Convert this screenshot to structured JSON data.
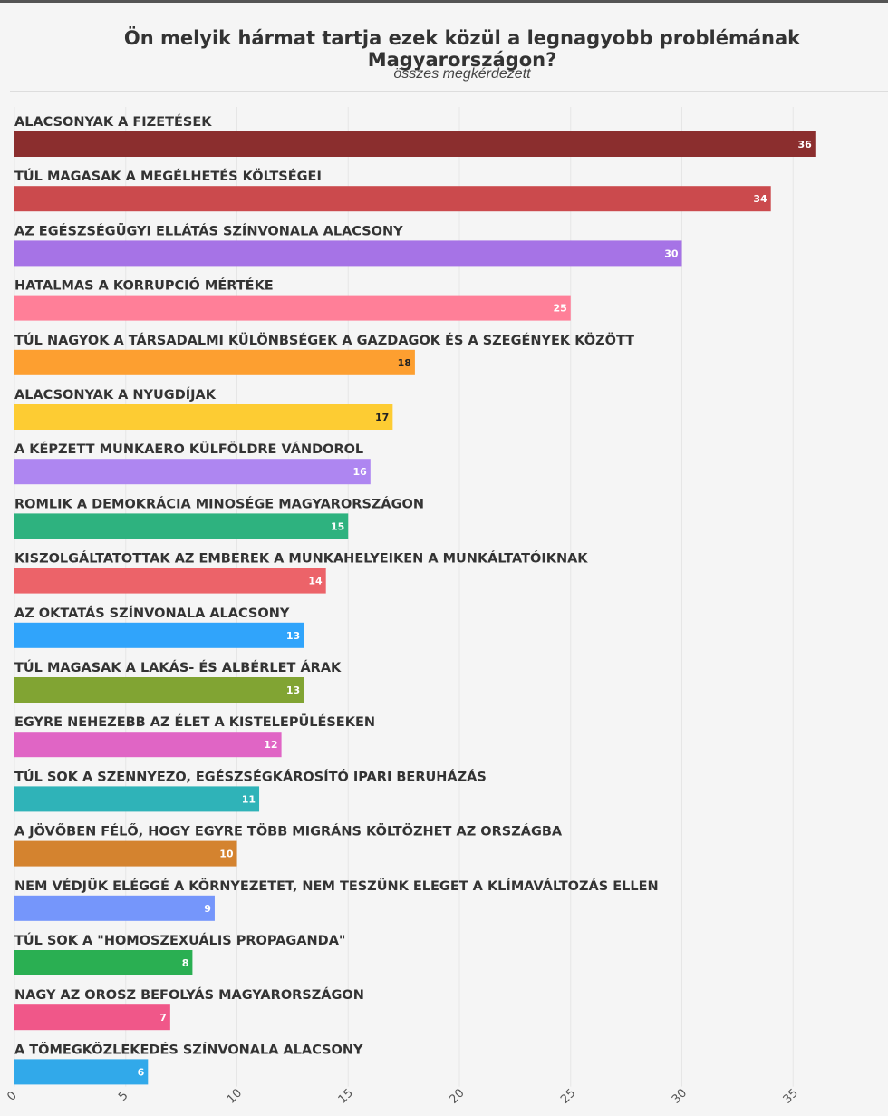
{
  "header": {
    "title": "Ön melyik hármat tartja ezek közül a legnagyobb problémának Magyarországon?",
    "subtitle": "összes megkérdezett"
  },
  "chart_data": {
    "type": "bar",
    "orientation": "horizontal",
    "title": "Ön melyik hármat tartja ezek közül a legnagyobb problémának Magyarországon?",
    "subtitle": "összes megkérdezett",
    "xlim": [
      0,
      39
    ],
    "xticks": [
      0,
      5,
      10,
      15,
      20,
      25,
      30,
      35
    ],
    "grid": "vertical",
    "categories": [
      "ALACSONYAK A FIZETÉSEK",
      "TÚL MAGASAK A MEGÉLHETÉS KÖLTSÉGEI",
      "AZ EGÉSZSÉGÜGYI ELLÁTÁS SZÍNVONALA ALACSONY",
      "HATALMAS A KORRUPCIÓ MÉRTÉKE",
      "TÚL NAGYOK A TÁRSADALMI KÜLÖNBSÉGEK A GAZDAGOK ÉS A SZEGÉNYEK KÖZÖTT",
      "ALACSONYAK A NYUGDÍJAK",
      "A KÉPZETT MUNKAERO KÜLFÖLDRE VÁNDOROL",
      "ROMLIK A DEMOKRÁCIA MINOSÉGE MAGYARORSZÁGON",
      "KISZOLGÁLTATOTTAK AZ EMBEREK A MUNKAHELYEIKEN A MUNKÁLTATÓIKNAK",
      "AZ OKTATÁS SZÍNVONALA ALACSONY",
      "TÚL MAGASAK A LAKÁS- ÉS ALBÉRLET ÁRAK",
      "EGYRE NEHEZEBB AZ ÉLET A KISTELEPÜLÉSEKEN",
      "TÚL SOK A SZENNYEZO, EGÉSZSÉGKÁROSÍTÓ IPARI BERUHÁZÁS",
      "A JÖVŐBEN FÉLŐ, HOGY EGYRE TÖBB MIGRÁNS KÖLTÖZHET AZ ORSZÁGBA",
      "NEM VÉDJÜK ELÉGGÉ A KÖRNYEZETET, NEM TESZÜNK ELEGET A KLÍMAVÁLTOZÁS ELLEN",
      "TÚL SOK A \"HOMOSZEXUÁLIS PROPAGANDA\"",
      "NAGY AZ OROSZ BEFOLYÁS MAGYARORSZÁGON",
      "A TÖMEGKÖZLEKEDÉS SZÍNVONALA ALACSONY"
    ],
    "values": [
      36,
      34,
      30,
      25,
      18,
      17,
      16,
      15,
      14,
      13,
      13,
      12,
      11,
      10,
      9,
      8,
      7,
      6
    ],
    "colors": [
      "#8b2e2e",
      "#cb4a4d",
      "#a673e6",
      "#ff7f98",
      "#fd9f30",
      "#fdcc33",
      "#ae86f1",
      "#2eb27f",
      "#ec6369",
      "#30a4fb",
      "#81a433",
      "#e065c5",
      "#2fb3b8",
      "#d4832f",
      "#7596fb",
      "#2aaf52",
      "#f05789",
      "#31a9ea"
    ],
    "label_colors": [
      "#ffffff",
      "#ffffff",
      "#ffffff",
      "#ffffff",
      "#222222",
      "#222222",
      "#ffffff",
      "#ffffff",
      "#ffffff",
      "#ffffff",
      "#ffffff",
      "#ffffff",
      "#ffffff",
      "#ffffff",
      "#ffffff",
      "#ffffff",
      "#ffffff",
      "#ffffff"
    ]
  }
}
